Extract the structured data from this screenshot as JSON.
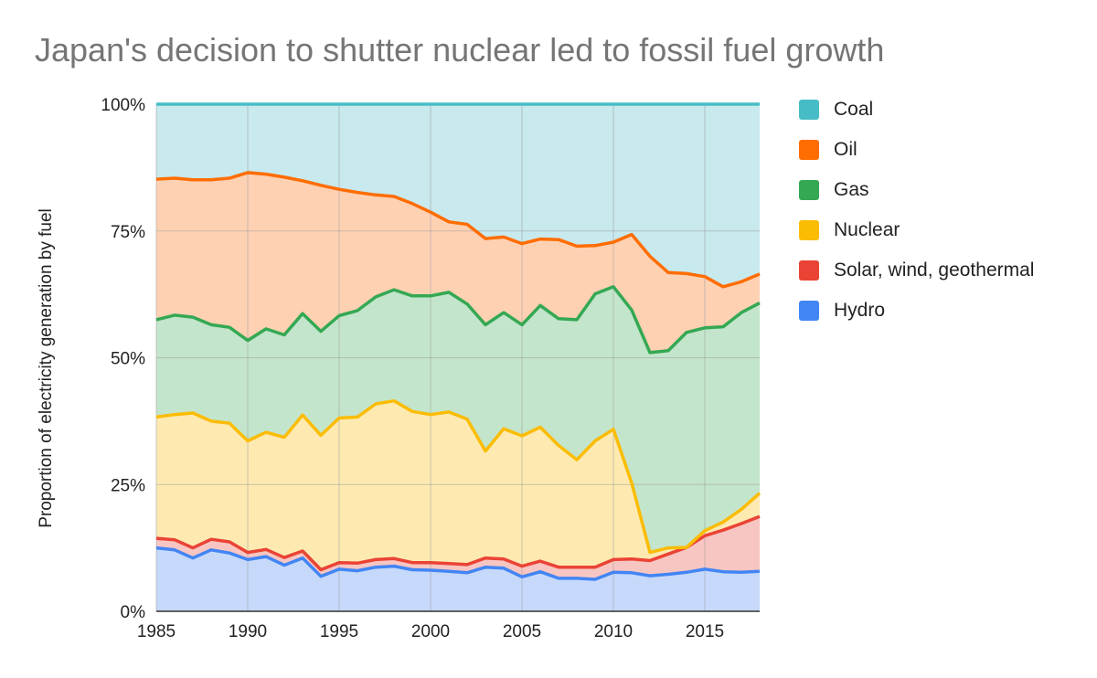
{
  "chart_data": {
    "type": "area",
    "stacked": true,
    "normalized": true,
    "title": "Japan's decision to shutter nuclear led to fossil fuel growth",
    "xlabel": "",
    "ylabel": "Proportion of electricity generation by fuel",
    "xlim": [
      1985,
      2018
    ],
    "ylim": [
      0,
      100
    ],
    "x_ticks": [
      "1985",
      "1990",
      "1995",
      "2000",
      "2005",
      "2010",
      "2015"
    ],
    "y_ticks": [
      "0%",
      "25%",
      "50%",
      "75%",
      "100%"
    ],
    "legend_position": "right",
    "x": [
      1985,
      1986,
      1987,
      1988,
      1989,
      1990,
      1991,
      1992,
      1993,
      1994,
      1995,
      1996,
      1997,
      1998,
      1999,
      2000,
      2001,
      2002,
      2003,
      2004,
      2005,
      2006,
      2007,
      2008,
      2009,
      2010,
      2011,
      2012,
      2013,
      2014,
      2015,
      2016,
      2017,
      2018
    ],
    "series": [
      {
        "name": "Hydro",
        "color": "#4285f4",
        "fill": "#c6d9fb",
        "cumulative": [
          12.5,
          12.1,
          10.5,
          12.1,
          11.5,
          10.2,
          10.8,
          9.1,
          10.5,
          6.9,
          8.3,
          8.0,
          8.7,
          8.9,
          8.2,
          8.1,
          7.9,
          7.6,
          8.7,
          8.5,
          6.8,
          7.8,
          6.5,
          6.5,
          6.3,
          7.7,
          7.6,
          7.0,
          7.3,
          7.7,
          8.3,
          7.8,
          7.7,
          7.9
        ]
      },
      {
        "name": "Solar, wind, geothermal",
        "color": "#ea4335",
        "fill": "#f8c6c2",
        "cumulative": [
          14.4,
          14.1,
          12.5,
          14.2,
          13.7,
          11.6,
          12.2,
          10.6,
          11.9,
          8.2,
          9.6,
          9.5,
          10.2,
          10.4,
          9.6,
          9.6,
          9.4,
          9.2,
          10.5,
          10.3,
          8.9,
          9.9,
          8.7,
          8.7,
          8.7,
          10.2,
          10.3,
          10.0,
          11.3,
          12.6,
          14.9,
          16.0,
          17.3,
          18.7
        ]
      },
      {
        "name": "Nuclear",
        "color": "#fbbc04",
        "fill": "#feeab1",
        "cumulative": [
          38.3,
          38.8,
          39.1,
          37.5,
          37.1,
          33.6,
          35.3,
          34.3,
          38.7,
          34.7,
          38.1,
          38.3,
          40.9,
          41.5,
          39.4,
          38.8,
          39.3,
          37.9,
          31.6,
          36.0,
          34.6,
          36.3,
          32.7,
          29.9,
          33.6,
          35.9,
          25.3,
          11.6,
          12.5,
          12.6,
          15.9,
          17.6,
          20.1,
          23.3
        ]
      },
      {
        "name": "Gas",
        "color": "#34a853",
        "fill": "#c3e5cb",
        "cumulative": [
          57.5,
          58.4,
          58.0,
          56.5,
          56.0,
          53.4,
          55.7,
          54.5,
          58.7,
          55.2,
          58.3,
          59.3,
          62.0,
          63.4,
          62.2,
          62.2,
          62.9,
          60.6,
          56.5,
          58.9,
          56.5,
          60.3,
          57.7,
          57.5,
          62.6,
          64.0,
          59.4,
          51.0,
          51.4,
          55.0,
          55.9,
          56.1,
          58.9,
          60.8
        ]
      },
      {
        "name": "Oil",
        "color": "#ff6d01",
        "fill": "#ffd1b3",
        "cumulative": [
          85.2,
          85.4,
          85.1,
          85.1,
          85.4,
          86.5,
          86.2,
          85.6,
          84.9,
          84.0,
          83.2,
          82.6,
          82.1,
          81.8,
          80.4,
          78.7,
          76.8,
          76.3,
          73.5,
          73.8,
          72.5,
          73.4,
          73.3,
          72.0,
          72.1,
          72.8,
          74.3,
          70.0,
          66.8,
          66.6,
          66.0,
          64.0,
          65.0,
          66.5
        ]
      },
      {
        "name": "Coal",
        "color": "#46bdc6",
        "fill": "#c8e9ed",
        "cumulative": [
          100,
          100,
          100,
          100,
          100,
          100,
          100,
          100,
          100,
          100,
          100,
          100,
          100,
          100,
          100,
          100,
          100,
          100,
          100,
          100,
          100,
          100,
          100,
          100,
          100,
          100,
          100,
          100,
          100,
          100,
          100,
          100,
          100,
          100
        ]
      }
    ]
  },
  "legend": {
    "items": [
      {
        "label": "Coal",
        "color": "#46bdc6"
      },
      {
        "label": "Oil",
        "color": "#ff6d01"
      },
      {
        "label": "Gas",
        "color": "#34a853"
      },
      {
        "label": "Nuclear",
        "color": "#fbbc04"
      },
      {
        "label": "Solar, wind, geothermal",
        "color": "#ea4335"
      },
      {
        "label": "Hydro",
        "color": "#4285f4"
      }
    ]
  }
}
